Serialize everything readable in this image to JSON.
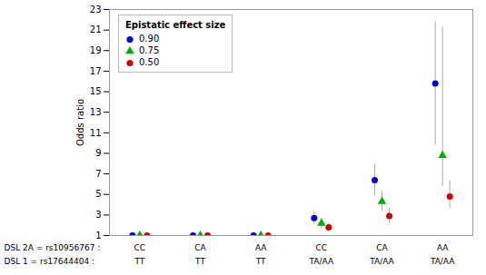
{
  "chart_data": {
    "type": "scatter",
    "ylabel": "Odds ratio",
    "x": [
      1,
      2,
      3,
      4,
      5,
      6
    ],
    "xlim": [
      0.5,
      6.5
    ],
    "xticks": [],
    "ylim": [
      1,
      23
    ],
    "yticks": [
      1,
      3,
      5,
      7,
      9,
      11,
      13,
      15,
      17,
      19,
      21,
      23
    ],
    "tick_labels": "y",
    "grid": false,
    "reference_y": 1,
    "series": [
      {
        "name": "0.90",
        "color": "#0000cc",
        "marker": "circle",
        "values": [
          1.0,
          1.0,
          1.0,
          2.7,
          6.4,
          15.8
        ],
        "error_low": [
          0.0,
          0.0,
          0.0,
          0.6,
          1.5,
          6.0
        ],
        "error_high": [
          0.0,
          0.0,
          0.0,
          0.6,
          1.5,
          6.0
        ]
      },
      {
        "name": "0.75",
        "color": "#00aa00",
        "marker": "triangle",
        "values": [
          1.0,
          1.0,
          1.0,
          2.2,
          4.3,
          8.8
        ],
        "error_low": [
          0.0,
          0.0,
          0.0,
          0.5,
          1.0,
          3.0
        ],
        "error_high": [
          0.0,
          0.0,
          0.0,
          0.5,
          1.0,
          12.5
        ]
      },
      {
        "name": "0.50",
        "color": "#cc0000",
        "marker": "circle",
        "values": [
          1.0,
          1.0,
          1.0,
          1.8,
          2.9,
          4.8
        ],
        "error_low": [
          0.0,
          0.0,
          0.0,
          0.4,
          0.7,
          1.2
        ],
        "error_high": [
          0.0,
          0.0,
          0.0,
          0.4,
          0.7,
          1.5
        ]
      }
    ],
    "legend": "upper left",
    "legend_title": "Epistatic effect size",
    "annotations": [
      {
        "text": "DSL 2A = rs10956767 :",
        "labels": [
          "CC",
          "CA",
          "AA",
          "CC",
          "CA",
          "AA"
        ]
      },
      {
        "text": "DSL 1 = rs17644404 :",
        "labels": [
          "TT",
          "TT",
          "TT",
          "TA/AA",
          "TA/AA",
          "TA/AA"
        ]
      }
    ]
  }
}
